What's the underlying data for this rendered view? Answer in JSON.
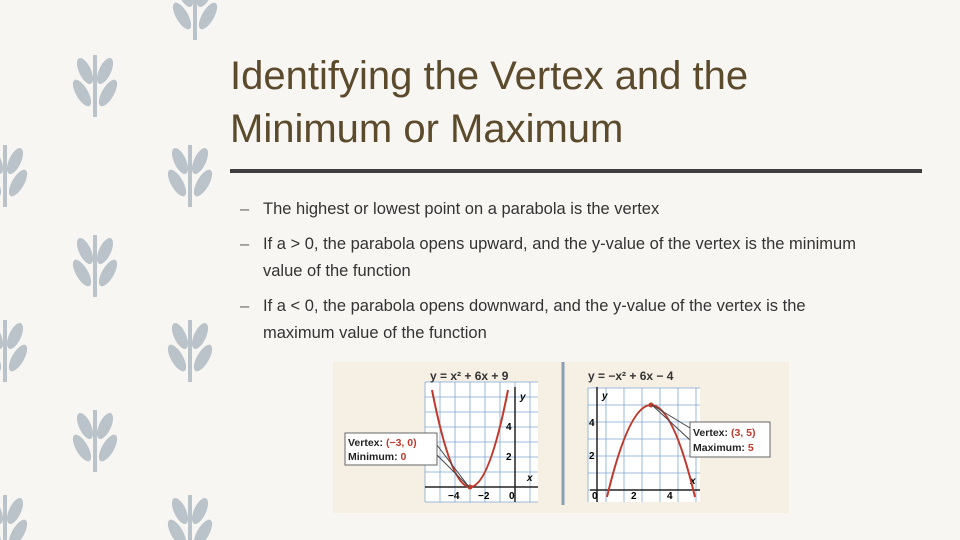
{
  "title_lines": [
    "Identifying the Vertex and the",
    "Minimum or Maximum"
  ],
  "bullets": [
    "The highest or lowest point on a parabola is the vertex",
    "If a > 0, the parabola opens upward, and the y-value of the vertex is the minimum value of the function",
    "If a < 0, the parabola opens downward, and the y-value of the vertex is the maximum value of the function"
  ],
  "figure": {
    "graphs": [
      {
        "equation": "y = x² + 6x + 9",
        "x_axis": "x",
        "y_axis": "y",
        "x_tick_labels": [
          "−4",
          "−2",
          "0"
        ],
        "y_tick_labels": [
          "4",
          "2"
        ],
        "callout": {
          "vertex_label": "Vertex:",
          "vertex": "(−3, 0)",
          "extreme_label": "Minimum:",
          "extreme": "0"
        }
      },
      {
        "equation": "y = −x² + 6x − 4",
        "x_axis": "x",
        "y_axis": "y",
        "x_tick_labels": [
          "0",
          "2",
          "4"
        ],
        "y_tick_labels": [
          "4",
          "2"
        ],
        "callout": {
          "vertex_label": "Vertex:",
          "vertex": "(3, 5)",
          "extreme_label": "Maximum:",
          "extreme": "5"
        }
      }
    ]
  }
}
